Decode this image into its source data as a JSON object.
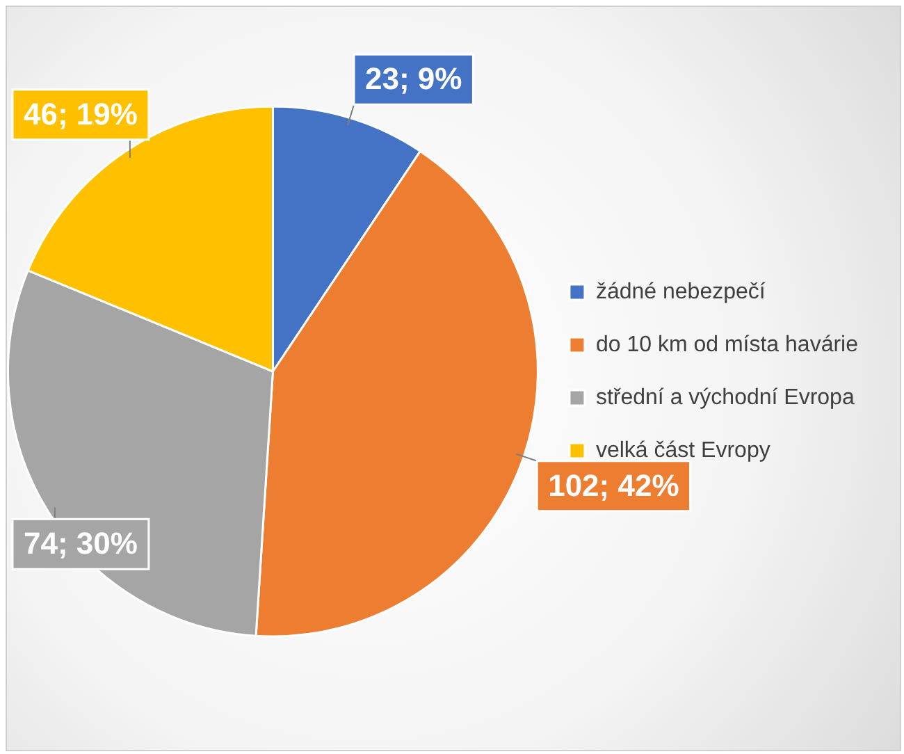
{
  "chart_data": {
    "type": "pie",
    "categories": [
      "žádné nebezpečí",
      "do 10 km od místa havárie",
      "střední a východní Evropa",
      "velká část Evropy"
    ],
    "values": [
      23,
      102,
      74,
      46
    ],
    "colors": [
      "#4472c4",
      "#ed7d31",
      "#a5a5a5",
      "#ffc000"
    ],
    "value_labels": [
      "23; 9%",
      "102; 42%",
      "74; 30%",
      "46; 19%"
    ],
    "legend": "right"
  }
}
